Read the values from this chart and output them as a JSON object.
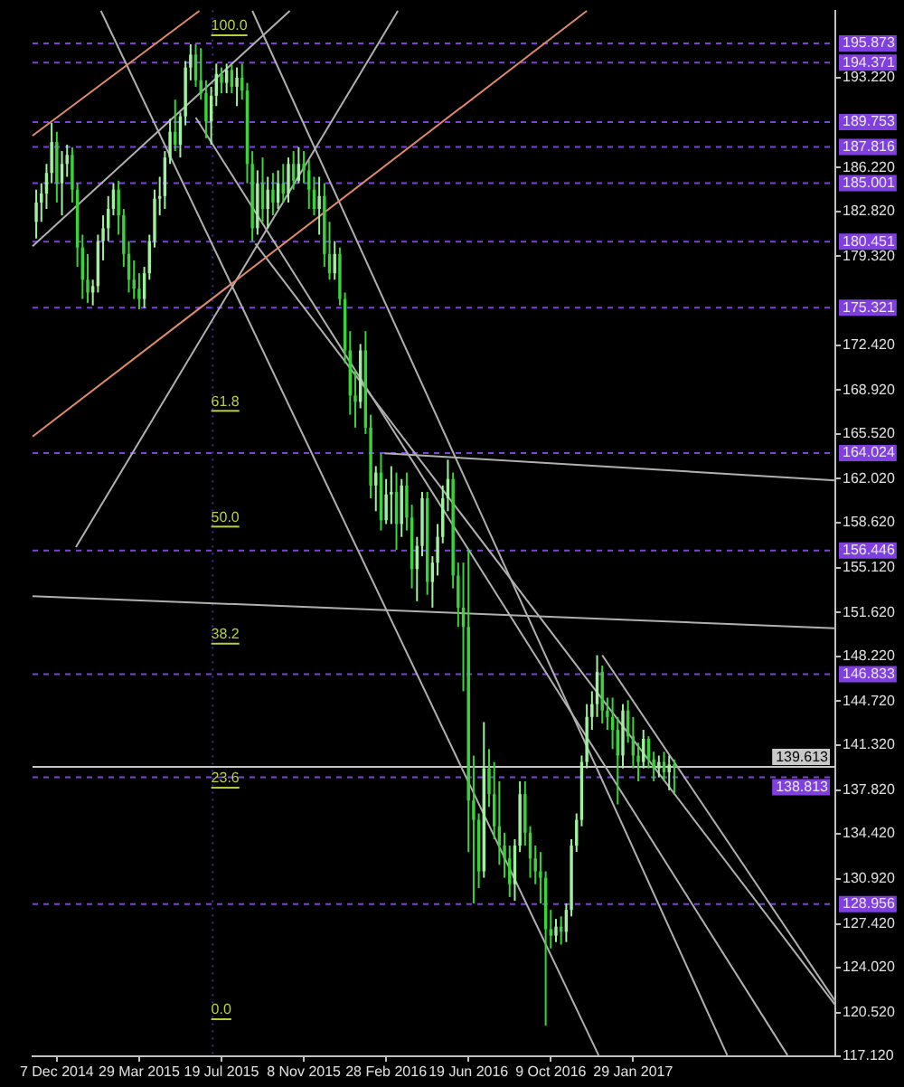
{
  "chart_data": {
    "type": "candlestick",
    "colors": [
      "#a0f0a0",
      "#a0f0a0",
      "#a0f0a0",
      "#a0f0a0",
      "#3cd23c",
      "#a0f0a0",
      "#a0f0a0",
      "#3cd23c",
      "#3cd23c",
      "#3cd23c",
      "#3cd23c",
      "#a0f0a0",
      "#a0f0a0",
      "#a0f0a0",
      "#a0f0a0",
      "#a0f0a0",
      "#3cd23c",
      "#3cd23c",
      "#3cd23c",
      "#3cd23c",
      "#3cd23c",
      "#a0f0a0",
      "#a0f0a0",
      "#a0f0a0",
      "#a0f0a0",
      "#a0f0a0",
      "#a0f0a0",
      "#3cd23c",
      "#a0f0a0",
      "#a0f0a0",
      "#a0f0a0",
      "#3cd23c",
      "#3cd23c",
      "#3cd23c",
      "#a0f0a0",
      "#a0f0a0",
      "#3cd23c",
      "#a0f0a0",
      "#3cd23c",
      "#a0f0a0",
      "#3cd23c",
      "#3cd23c",
      "#3cd23c",
      "#a0f0a0",
      "#3cd23c",
      "#a0f0a0",
      "#3cd23c",
      "#a0f0a0",
      "#3cd23c",
      "#a0f0a0",
      "#3cd23c",
      "#a0f0a0",
      "#3cd23c",
      "#3cd23c",
      "#3cd23c",
      "#a0f0a0",
      "#3cd23c",
      "#3cd23c",
      "#a0f0a0",
      "#3cd23c",
      "#3cd23c",
      "#3cd23c",
      "#3cd23c",
      "#a0f0a0",
      "#3cd23c",
      "#3cd23c",
      "#a0f0a0",
      "#3cd23c",
      "#a0f0a0",
      "#a0f0a0",
      "#3cd23c",
      "#a0f0a0",
      "#3cd23c",
      "#3cd23c",
      "#a0f0a0",
      "#a0f0a0",
      "#3cd23c",
      "#a0f0a0",
      "#a0f0a0",
      "#a0f0a0",
      "#a0f0a0",
      "#3cd23c",
      "#3cd23c",
      "#3cd23c",
      "#3cd23c",
      "#3cd23c",
      "#3cd23c",
      "#a0f0a0",
      "#3cd23c",
      "#3cd23c",
      "#3cd23c",
      "#3cd23c",
      "#3cd23c",
      "#a0f0a0",
      "#a0f0a0",
      "#3cd23c",
      "#3cd23c",
      "#3cd23c",
      "#3cd23c",
      "#3cd23c",
      "#3cd23c",
      "#a0f0a0",
      "#3cd23c",
      "#a0f0a0",
      "#a0f0a0",
      "#a0f0a0",
      "#a0f0a0",
      "#a0f0a0",
      "#a0f0a0",
      "#a0f0a0",
      "#3cd23c",
      "#3cd23c",
      "#3cd23c",
      "#3cd23c",
      "#a0f0a0",
      "#3cd23c",
      "#3cd23c",
      "#3cd23c",
      "#a0f0a0",
      "#3cd23c",
      "#3cd23c",
      "#a0f0a0",
      "#3cd23c",
      "#a0f0a0",
      "#3cd23c"
    ],
    "x": [
      "2014-11-09",
      "2014-11-16",
      "2014-11-23",
      "2014-11-30",
      "2014-12-07",
      "2014-12-14",
      "2014-12-21",
      "2014-12-28",
      "2015-01-04",
      "2015-01-11",
      "2015-01-18",
      "2015-01-25",
      "2015-02-01",
      "2015-02-08",
      "2015-02-15",
      "2015-02-22",
      "2015-03-01",
      "2015-03-08",
      "2015-03-15",
      "2015-03-22",
      "2015-03-29",
      "2015-04-05",
      "2015-04-12",
      "2015-04-19",
      "2015-04-26",
      "2015-05-03",
      "2015-05-10",
      "2015-05-17",
      "2015-05-24",
      "2015-05-31",
      "2015-06-07",
      "2015-06-14",
      "2015-06-21",
      "2015-06-28",
      "2015-07-05",
      "2015-07-12",
      "2015-07-19",
      "2015-07-26",
      "2015-08-02",
      "2015-08-09",
      "2015-08-16",
      "2015-08-23",
      "2015-08-30",
      "2015-09-06",
      "2015-09-13",
      "2015-09-20",
      "2015-09-27",
      "2015-10-04",
      "2015-10-11",
      "2015-10-18",
      "2015-10-25",
      "2015-11-01",
      "2015-11-08",
      "2015-11-15",
      "2015-11-22",
      "2015-11-29",
      "2015-12-06",
      "2015-12-13",
      "2015-12-20",
      "2015-12-27",
      "2016-01-03",
      "2016-01-10",
      "2016-01-17",
      "2016-01-24",
      "2016-01-31",
      "2016-02-07",
      "2016-02-14",
      "2016-02-21",
      "2016-02-28",
      "2016-03-06",
      "2016-03-13",
      "2016-03-20",
      "2016-03-27",
      "2016-04-03",
      "2016-04-10",
      "2016-04-17",
      "2016-04-24",
      "2016-05-01",
      "2016-05-08",
      "2016-05-15",
      "2016-05-22",
      "2016-05-29",
      "2016-06-05",
      "2016-06-12",
      "2016-06-19",
      "2016-06-26",
      "2016-07-03",
      "2016-07-10",
      "2016-07-17",
      "2016-07-24",
      "2016-07-31",
      "2016-08-07",
      "2016-08-14",
      "2016-08-21",
      "2016-08-28",
      "2016-09-04",
      "2016-09-11",
      "2016-09-18",
      "2016-09-25",
      "2016-10-02",
      "2016-10-09",
      "2016-10-16",
      "2016-10-23",
      "2016-10-30",
      "2016-11-06",
      "2016-11-13",
      "2016-11-20",
      "2016-11-27",
      "2016-12-04",
      "2016-12-11",
      "2016-12-18",
      "2016-12-25",
      "2017-01-01",
      "2017-01-08",
      "2017-01-15",
      "2017-01-22",
      "2017-01-29",
      "2017-02-05",
      "2017-02-12",
      "2017-02-19",
      "2017-02-26",
      "2017-03-05",
      "2017-03-12",
      "2017-03-19",
      "2017-03-26"
    ],
    "ohlc": [
      [
        182.0,
        184.5,
        180.7,
        183.5
      ],
      [
        183.5,
        185.0,
        182.0,
        184.2
      ],
      [
        184.2,
        186.5,
        183.0,
        185.8
      ],
      [
        185.8,
        189.7,
        185.0,
        188.2
      ],
      [
        188.2,
        189.0,
        183.5,
        185.0
      ],
      [
        185.0,
        187.5,
        182.5,
        186.5
      ],
      [
        186.5,
        188.0,
        185.5,
        187.2
      ],
      [
        187.2,
        187.8,
        183.5,
        184.5
      ],
      [
        184.5,
        185.0,
        178.5,
        180.0
      ],
      [
        180.0,
        181.0,
        176.0,
        177.5
      ],
      [
        177.5,
        179.5,
        175.7,
        176.5
      ],
      [
        176.5,
        177.5,
        175.5,
        177.0
      ],
      [
        177.0,
        181.0,
        176.5,
        180.5
      ],
      [
        180.5,
        182.5,
        179.0,
        181.5
      ],
      [
        181.5,
        184.0,
        180.5,
        183.0
      ],
      [
        183.0,
        185.0,
        182.5,
        184.5
      ],
      [
        184.5,
        185.2,
        181.0,
        182.5
      ],
      [
        182.5,
        183.0,
        178.5,
        179.5
      ],
      [
        179.5,
        180.5,
        176.5,
        177.5
      ],
      [
        177.5,
        179.0,
        176.0,
        176.8
      ],
      [
        176.8,
        178.0,
        175.2,
        176.0
      ],
      [
        176.0,
        178.5,
        175.3,
        178.0
      ],
      [
        178.0,
        181.0,
        177.5,
        180.5
      ],
      [
        180.5,
        184.5,
        180.0,
        183.8
      ],
      [
        183.8,
        185.5,
        182.5,
        184.0
      ],
      [
        184.0,
        187.5,
        183.0,
        187.0
      ],
      [
        187.0,
        190.0,
        186.5,
        189.0
      ],
      [
        189.0,
        191.5,
        187.5,
        188.0
      ],
      [
        188.0,
        190.5,
        187.0,
        190.2
      ],
      [
        190.2,
        194.5,
        189.5,
        194.0
      ],
      [
        194.0,
        195.8,
        193.0,
        195.0
      ],
      [
        195.0,
        195.8,
        192.5,
        193.0
      ],
      [
        193.0,
        195.5,
        191.5,
        192.0
      ],
      [
        192.0,
        193.0,
        188.5,
        189.8
      ],
      [
        189.8,
        192.5,
        188.0,
        191.8
      ],
      [
        191.8,
        194.3,
        191.0,
        193.5
      ],
      [
        193.5,
        194.0,
        192.0,
        192.8
      ],
      [
        192.8,
        194.3,
        192.0,
        193.8
      ],
      [
        193.8,
        194.2,
        192.0,
        192.5
      ],
      [
        192.5,
        194.0,
        191.0,
        193.2
      ],
      [
        193.2,
        194.3,
        191.5,
        192.2
      ],
      [
        192.2,
        192.8,
        185.0,
        186.5
      ],
      [
        186.5,
        187.5,
        180.5,
        181.5
      ],
      [
        181.5,
        186.0,
        181.0,
        185.0
      ],
      [
        185.0,
        187.0,
        182.0,
        183.0
      ],
      [
        183.0,
        185.5,
        181.5,
        184.5
      ],
      [
        184.5,
        185.8,
        182.5,
        183.5
      ],
      [
        183.5,
        186.0,
        183.0,
        185.0
      ],
      [
        185.0,
        186.5,
        183.5,
        184.2
      ],
      [
        184.2,
        187.0,
        183.5,
        186.5
      ],
      [
        186.5,
        187.5,
        184.5,
        185.2
      ],
      [
        185.2,
        187.8,
        185.0,
        186.5
      ],
      [
        186.5,
        187.5,
        185.0,
        186.0
      ],
      [
        186.0,
        186.8,
        183.0,
        184.5
      ],
      [
        184.5,
        185.5,
        182.5,
        183.0
      ],
      [
        183.0,
        185.5,
        181.0,
        184.0
      ],
      [
        184.0,
        185.0,
        178.5,
        179.5
      ],
      [
        179.5,
        182.0,
        177.5,
        178.0
      ],
      [
        178.0,
        180.5,
        177.5,
        179.5
      ],
      [
        179.5,
        180.0,
        175.5,
        176.0
      ],
      [
        176.0,
        176.5,
        171.0,
        172.0
      ],
      [
        172.0,
        173.5,
        167.0,
        168.5
      ],
      [
        168.5,
        170.5,
        166.0,
        168.0
      ],
      [
        168.0,
        172.5,
        167.5,
        172.0
      ],
      [
        172.0,
        173.5,
        165.5,
        166.0
      ],
      [
        166.0,
        167.0,
        160.5,
        161.5
      ],
      [
        161.5,
        163.0,
        159.5,
        162.5
      ],
      [
        162.5,
        164.0,
        158.0,
        158.8
      ],
      [
        158.8,
        162.0,
        158.5,
        160.8
      ],
      [
        160.8,
        163.0,
        158.5,
        161.0
      ],
      [
        161.0,
        162.5,
        156.5,
        158.5
      ],
      [
        158.5,
        162.0,
        157.5,
        161.5
      ],
      [
        161.5,
        162.5,
        158.0,
        159.0
      ],
      [
        159.0,
        160.0,
        153.5,
        155.0
      ],
      [
        155.0,
        157.5,
        152.5,
        156.8
      ],
      [
        156.8,
        161.0,
        156.0,
        160.5
      ],
      [
        160.5,
        161.0,
        153.0,
        154.0
      ],
      [
        154.0,
        156.0,
        152.0,
        155.5
      ],
      [
        155.5,
        158.5,
        154.5,
        157.5
      ],
      [
        157.5,
        161.5,
        157.0,
        160.5
      ],
      [
        160.5,
        163.5,
        159.5,
        162.0
      ],
      [
        162.0,
        162.5,
        153.5,
        154.5
      ],
      [
        154.5,
        155.5,
        150.5,
        152.0
      ],
      [
        152.0,
        155.5,
        145.5,
        150.5
      ],
      [
        150.5,
        156.6,
        133.0,
        137.0
      ],
      [
        137.0,
        140.5,
        129.0,
        135.5
      ],
      [
        135.5,
        136.0,
        130.2,
        131.5
      ],
      [
        131.5,
        143.1,
        131.0,
        139.5
      ],
      [
        139.5,
        141.0,
        136.5,
        137.5
      ],
      [
        137.5,
        140.0,
        134.0,
        135.0
      ],
      [
        135.0,
        138.5,
        132.0,
        133.5
      ],
      [
        133.5,
        134.5,
        131.0,
        132.5
      ],
      [
        132.5,
        133.5,
        129.5,
        130.5
      ],
      [
        130.5,
        134.0,
        129.2,
        133.5
      ],
      [
        133.5,
        138.5,
        133.0,
        137.5
      ],
      [
        137.5,
        138.5,
        133.5,
        134.5
      ],
      [
        134.5,
        135.0,
        131.0,
        132.5
      ],
      [
        132.5,
        133.5,
        130.5,
        131.5
      ],
      [
        131.5,
        133.0,
        129.0,
        131.0
      ],
      [
        131.0,
        131.5,
        119.5,
        127.0
      ],
      [
        127.0,
        128.5,
        125.5,
        126.5
      ],
      [
        126.5,
        127.8,
        126.0,
        127.2
      ],
      [
        127.2,
        128.0,
        125.8,
        126.8
      ],
      [
        126.8,
        129.0,
        126.0,
        128.5
      ],
      [
        128.5,
        134.0,
        128.0,
        133.5
      ],
      [
        133.5,
        136.0,
        133.0,
        135.5
      ],
      [
        135.5,
        140.5,
        135.0,
        140.0
      ],
      [
        140.0,
        144.5,
        139.5,
        143.5
      ],
      [
        143.5,
        145.5,
        142.5,
        144.5
      ],
      [
        144.5,
        148.3,
        143.5,
        147.0
      ],
      [
        147.0,
        147.5,
        143.0,
        144.0
      ],
      [
        144.0,
        145.0,
        142.5,
        143.5
      ],
      [
        143.5,
        145.0,
        141.0,
        142.5
      ],
      [
        142.5,
        143.5,
        136.7,
        140.5
      ],
      [
        140.5,
        144.5,
        139.5,
        144.0
      ],
      [
        144.0,
        144.8,
        141.5,
        142.0
      ],
      [
        142.0,
        143.5,
        139.5,
        140.5
      ],
      [
        140.5,
        141.5,
        138.5,
        140.0
      ],
      [
        140.0,
        142.5,
        139.5,
        141.8
      ],
      [
        141.8,
        142.0,
        139.5,
        140.2
      ],
      [
        140.2,
        140.8,
        138.5,
        139.5
      ],
      [
        139.5,
        140.5,
        138.8,
        140.0
      ],
      [
        140.0,
        140.8,
        138.5,
        139.2
      ],
      [
        139.2,
        140.5,
        137.8,
        139.8
      ],
      [
        139.8,
        140.2,
        137.6,
        139.6
      ]
    ],
    "series": [
      {
        "type": "line",
        "color": "#e08a6a",
        "x": [
          "2014-11-04",
          "2015-06-19"
        ],
        "values": [
          188.7,
          198.4
        ]
      },
      {
        "type": "line",
        "color": "#e08a6a",
        "x": [
          "2014-11-04",
          "2016-11-27"
        ],
        "values": [
          165.3,
          198.4
        ]
      },
      {
        "type": "line",
        "color": "#b0b0b0",
        "x": [
          "2015-02-05",
          "2016-12-13"
        ],
        "values": [
          198.4,
          117.2
        ]
      },
      {
        "type": "line",
        "color": "#b0b0b0",
        "x": [
          "2015-08-30",
          "2017-06-06"
        ],
        "values": [
          198.4,
          117.2
        ]
      },
      {
        "type": "line",
        "color": "#b0b0b0",
        "x": [
          "2015-06-14",
          "2017-08-27"
        ],
        "values": [
          190.1,
          117.2
        ]
      },
      {
        "type": "line",
        "color": "#b0b0b0",
        "x": [
          "2015-09-03",
          "2017-10-31"
        ],
        "values": [
          180.3,
          121.1
        ]
      },
      {
        "type": "line",
        "color": "#b0b0b0",
        "x": [
          "2014-11-04",
          "2015-10-20"
        ],
        "values": [
          180.1,
          198.4
        ]
      },
      {
        "type": "line",
        "color": "#b0b0b0",
        "x": [
          "2015-01-02",
          "2016-03-15"
        ],
        "values": [
          156.7,
          198.4
        ]
      },
      {
        "type": "line",
        "color": "#b0b0b0",
        "x": [
          "2014-11-04",
          "2017-10-31"
        ],
        "values": [
          152.9,
          150.4
        ]
      },
      {
        "type": "line",
        "color": "#b0b0b0",
        "x": [
          "2016-02-26",
          "2017-10-31"
        ],
        "values": [
          164.0,
          161.9
        ]
      },
      {
        "type": "line",
        "color": "#b0b0b0",
        "x": [
          "2016-12-18",
          "2017-10-31"
        ],
        "values": [
          148.3,
          121.4
        ]
      }
    ],
    "xlim": [
      "2014-11-04",
      "2017-10-31"
    ],
    "xticks": [
      {
        "value": "2014-12-07",
        "label": "7 Dec 2014"
      },
      {
        "value": "2015-03-29",
        "label": "29 Mar 2015"
      },
      {
        "value": "2015-07-19",
        "label": "19 Jul 2015"
      },
      {
        "value": "2015-11-08",
        "label": "8 Nov 2015"
      },
      {
        "value": "2016-02-28",
        "label": "28 Feb 2016"
      },
      {
        "value": "2016-06-19",
        "label": "19 Jun 2016"
      },
      {
        "value": "2016-10-09",
        "label": "9 Oct 2016"
      },
      {
        "value": "2017-01-29",
        "label": "29 Jan 2017"
      }
    ],
    "ylim": [
      117.12,
      198.43
    ],
    "yticks": [
      {
        "value": 117.12,
        "label": "117.120"
      },
      {
        "value": 120.52,
        "label": "120.520"
      },
      {
        "value": 124.02,
        "label": "124.020"
      },
      {
        "value": 127.42,
        "label": "127.420"
      },
      {
        "value": 130.92,
        "label": "130.920"
      },
      {
        "value": 134.42,
        "label": "134.420"
      },
      {
        "value": 137.82,
        "label": "137.820"
      },
      {
        "value": 141.32,
        "label": "141.320"
      },
      {
        "value": 144.72,
        "label": "144.720"
      },
      {
        "value": 148.22,
        "label": "148.220"
      },
      {
        "value": 151.62,
        "label": "151.620"
      },
      {
        "value": 155.12,
        "label": "155.120"
      },
      {
        "value": 158.62,
        "label": "158.620"
      },
      {
        "value": 162.02,
        "label": "162.020"
      },
      {
        "value": 165.52,
        "label": "165.520"
      },
      {
        "value": 168.92,
        "label": "168.920"
      },
      {
        "value": 172.42,
        "label": "172.420"
      },
      {
        "value": 179.32,
        "label": "179.320"
      },
      {
        "value": 182.82,
        "label": "182.820"
      },
      {
        "value": 186.22,
        "label": "186.220"
      },
      {
        "value": 193.22,
        "label": "193.220"
      }
    ],
    "ref_lines": [
      {
        "axis": "y",
        "value": 195.873,
        "label": "195.873",
        "color": "#8040e0",
        "line_style": "dashed"
      },
      {
        "axis": "y",
        "value": 194.371,
        "label": "194.371",
        "color": "#8040e0",
        "line_style": "dashed"
      },
      {
        "axis": "y",
        "value": 189.753,
        "label": "189.753",
        "color": "#8040e0",
        "line_style": "dashed"
      },
      {
        "axis": "y",
        "value": 187.816,
        "label": "187.816",
        "color": "#8040e0",
        "line_style": "dashed"
      },
      {
        "axis": "y",
        "value": 185.001,
        "label": "185.001",
        "color": "#8040e0",
        "line_style": "dashed"
      },
      {
        "axis": "y",
        "value": 180.451,
        "label": "180.451",
        "color": "#8040e0",
        "line_style": "dashed"
      },
      {
        "axis": "y",
        "value": 175.321,
        "label": "175.321",
        "color": "#8040e0",
        "line_style": "dashed"
      },
      {
        "axis": "y",
        "value": 164.024,
        "label": "164.024",
        "color": "#8040e0",
        "line_style": "dashed"
      },
      {
        "axis": "y",
        "value": 156.446,
        "label": "156.446",
        "color": "#8040e0",
        "line_style": "dashed"
      },
      {
        "axis": "y",
        "value": 146.833,
        "label": "146.833",
        "color": "#8040e0",
        "line_style": "dashed"
      },
      {
        "axis": "y",
        "value": 138.813,
        "label": "138.813",
        "color": "#8040e0",
        "line_style": "dashed"
      },
      {
        "axis": "y",
        "value": 128.956,
        "label": "128.956",
        "color": "#8040e0",
        "line_style": "dashed"
      },
      {
        "axis": "y",
        "value": 139.613,
        "label": "139.613",
        "color": "#c8c8c8",
        "line_style": "solid"
      },
      {
        "axis": "x",
        "value": "2015-07-07",
        "color": "#3030a0",
        "line_style": "dotted"
      }
    ],
    "annotations": [
      {
        "text": "100.0",
        "x": "2015-07-05",
        "y": 196.5
      },
      {
        "text": "61.8",
        "x": "2015-07-05",
        "y": 167.3
      },
      {
        "text": "50.0",
        "x": "2015-07-05",
        "y": 158.3
      },
      {
        "text": "38.2",
        "x": "2015-07-05",
        "y": 149.2
      },
      {
        "text": "23.6",
        "x": "2015-07-05",
        "y": 138.0
      },
      {
        "text": "0.0",
        "x": "2015-07-05",
        "y": 120.0
      }
    ],
    "grid": false,
    "legend": false
  }
}
